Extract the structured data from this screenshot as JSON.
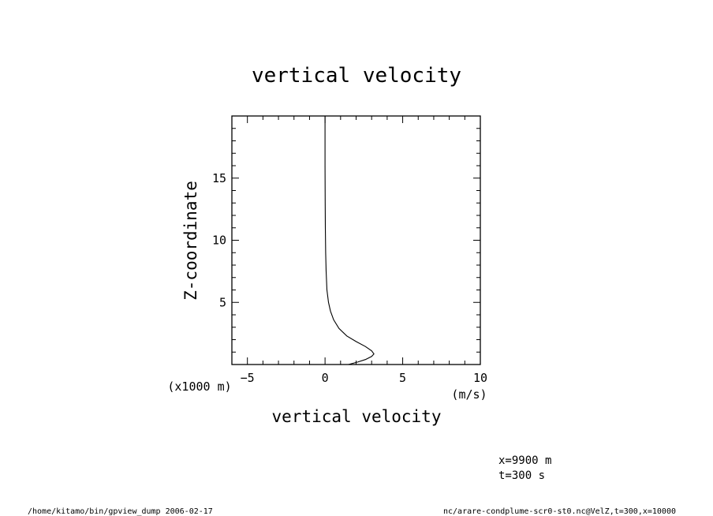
{
  "chart_data": {
    "type": "line",
    "title": "vertical velocity",
    "xlabel": "vertical velocity",
    "ylabel": "Z-coordinate",
    "x_unit": "(m/s)",
    "y_unit": "(x1000 m)",
    "xlim": [
      -6,
      10
    ],
    "ylim": [
      0,
      20
    ],
    "x_ticks": [
      -5,
      0,
      5,
      10
    ],
    "y_ticks": [
      5,
      10,
      15
    ],
    "grid": false,
    "series": [
      {
        "points": [
          [
            1.5,
            0.0
          ],
          [
            2.1,
            0.2
          ],
          [
            2.6,
            0.4
          ],
          [
            3.0,
            0.65
          ],
          [
            3.15,
            0.85
          ],
          [
            3.0,
            1.1
          ],
          [
            2.6,
            1.45
          ],
          [
            2.0,
            1.85
          ],
          [
            1.4,
            2.3
          ],
          [
            0.9,
            2.9
          ],
          [
            0.55,
            3.6
          ],
          [
            0.35,
            4.3
          ],
          [
            0.22,
            5.0
          ],
          [
            0.12,
            6.0
          ],
          [
            0.07,
            7.5
          ],
          [
            0.04,
            9.0
          ],
          [
            0.02,
            11.0
          ],
          [
            0.01,
            13.0
          ],
          [
            0.0,
            16.0
          ],
          [
            0.0,
            20.0
          ]
        ]
      }
    ]
  },
  "annotations": {
    "x_position": "x=9900 m",
    "time": "t=300 s"
  },
  "footer": {
    "left": "/home/kitamo/bin/gpview_dump  2006-02-17",
    "right": "nc/arare-condplume-scr0-st0.nc@VelZ,t=300,x=10000"
  }
}
